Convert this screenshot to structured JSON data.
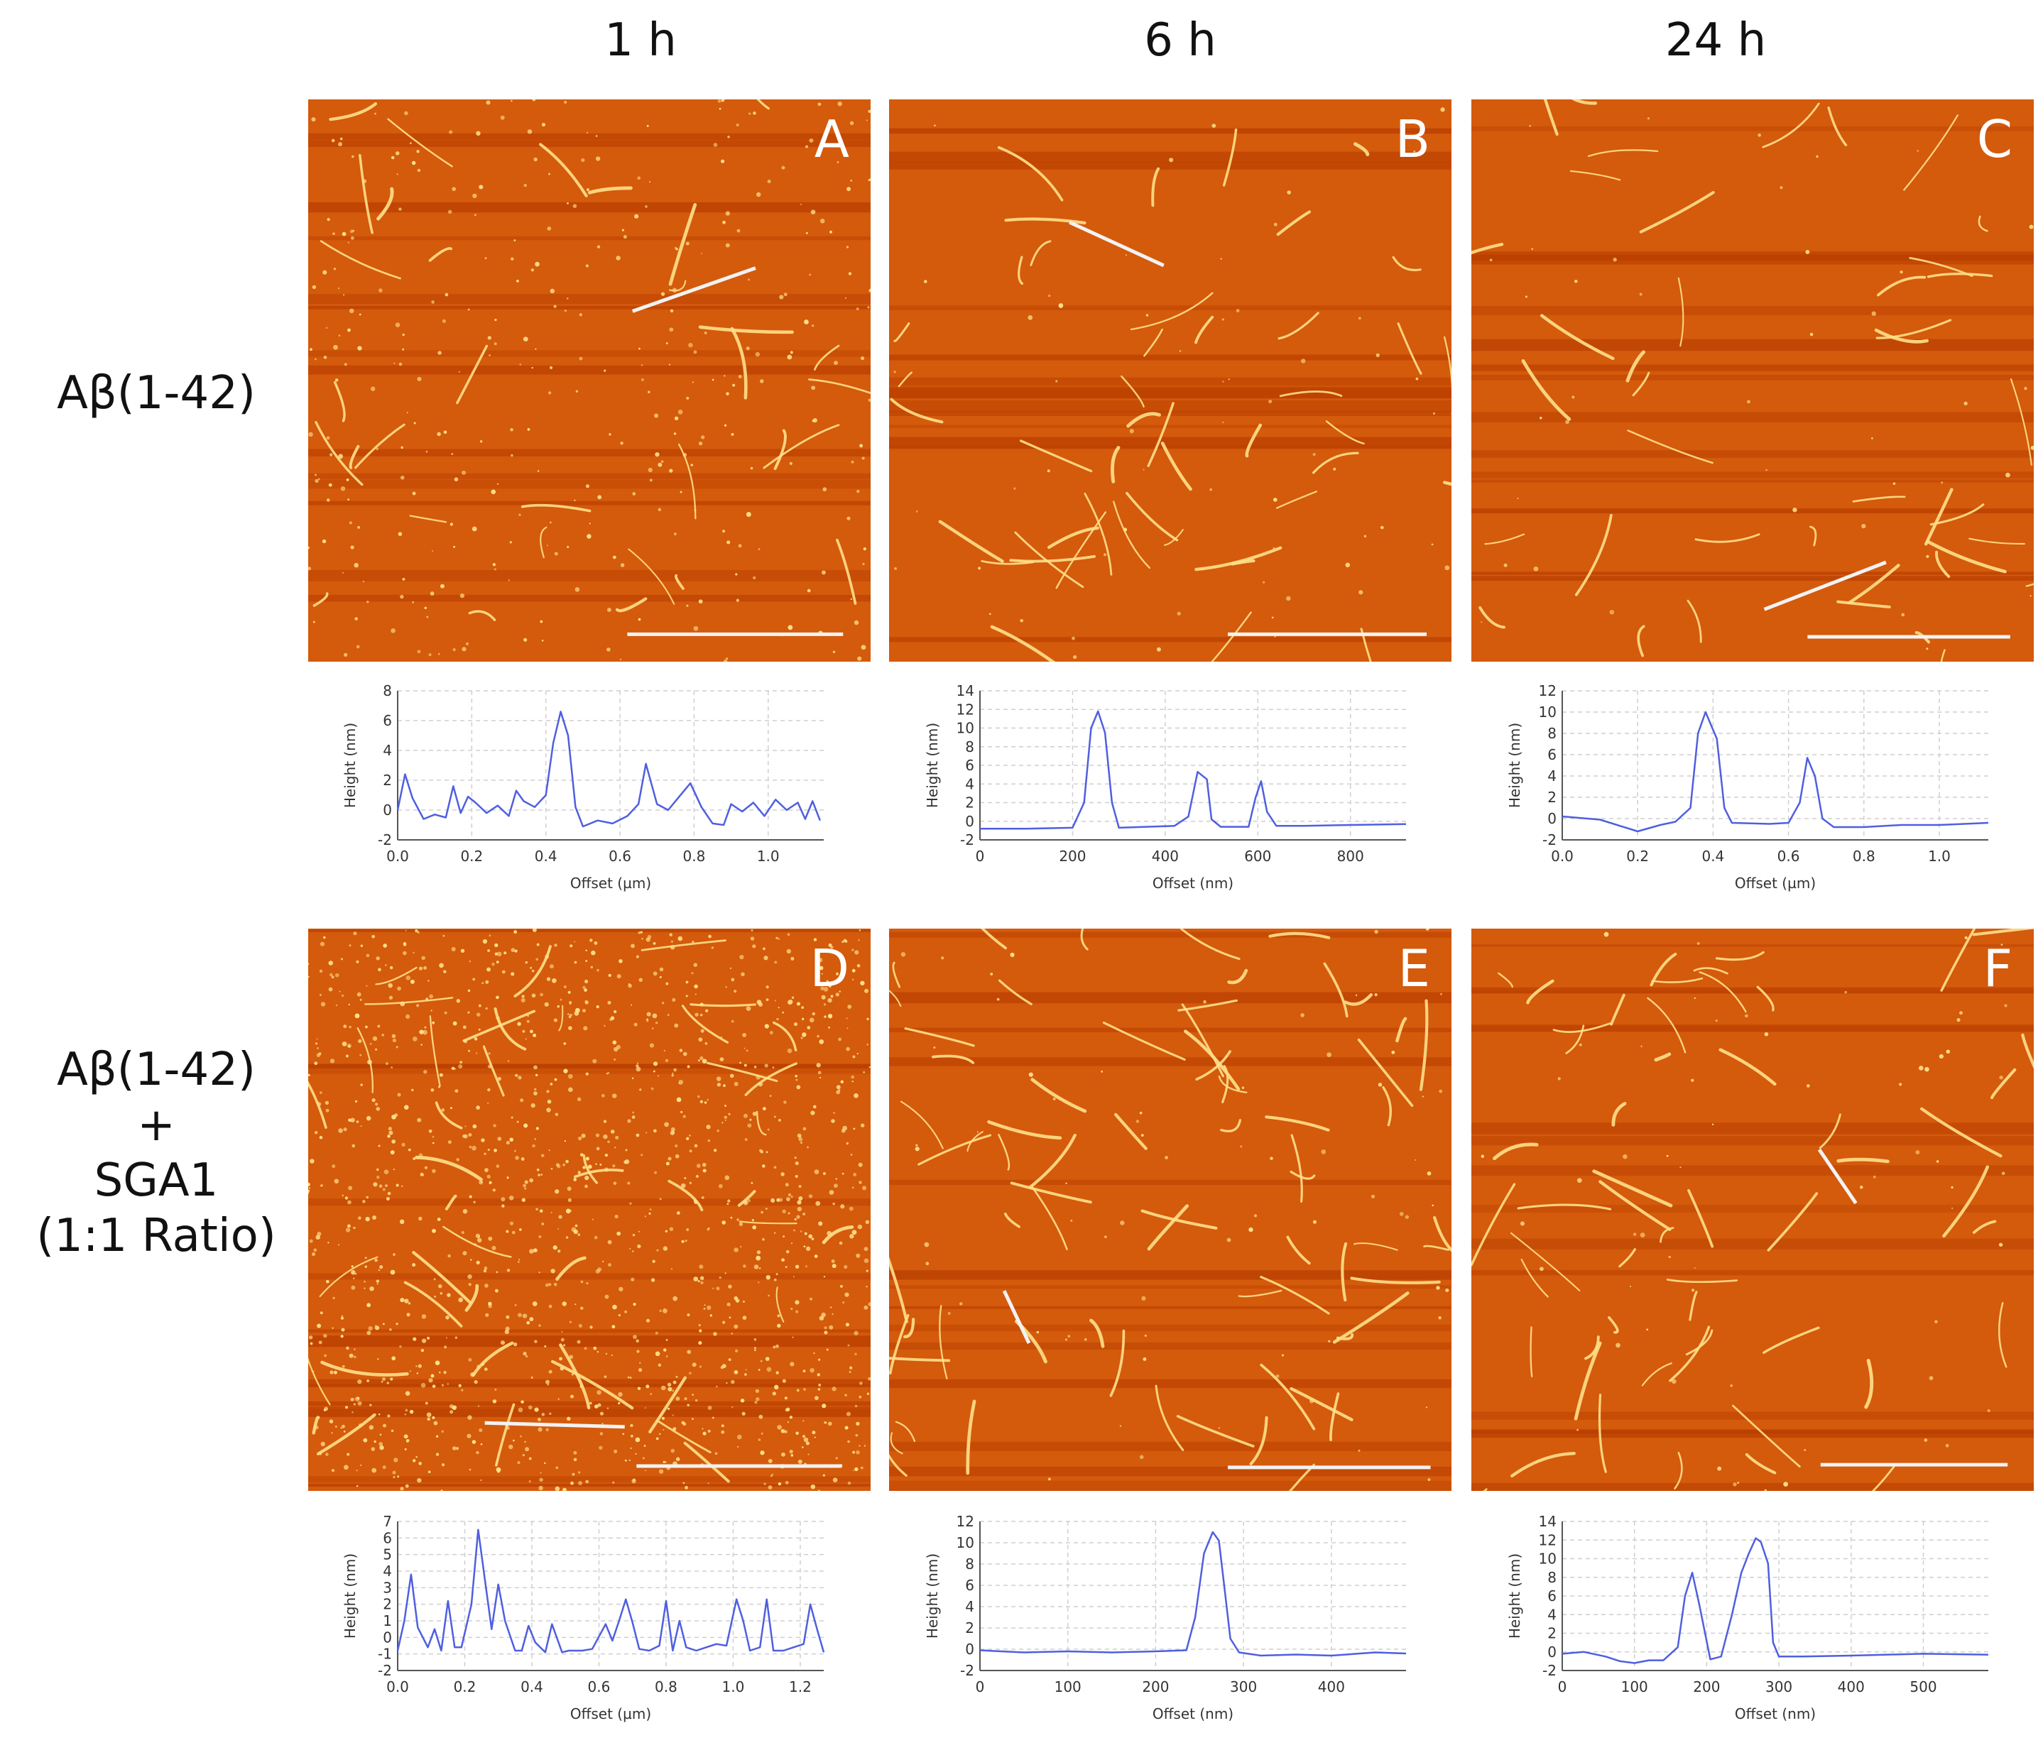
{
  "columns": [
    "1 h",
    "6 h",
    "24 h"
  ],
  "rows": [
    "Aβ(1-42)",
    "Aβ(1-42)\n+\nSGA1\n(1:1 Ratio)"
  ],
  "colors": {
    "afm_background": "#b83e00",
    "afm_mid": "#d45a0c",
    "afm_fibril": "#ffe08a",
    "profile_line": "#4f5fe0",
    "grid": "#cfcfcf"
  },
  "panels": [
    {
      "letter": "A"
    },
    {
      "letter": "B"
    },
    {
      "letter": "C"
    },
    {
      "letter": "D"
    },
    {
      "letter": "E"
    },
    {
      "letter": "F"
    }
  ],
  "chart_data": [
    {
      "panel": "A",
      "type": "line",
      "xlabel": "Offset (µm)",
      "ylabel": "Height (nm)",
      "xlim": [
        0,
        1.15
      ],
      "ylim": [
        -2,
        8
      ],
      "xticks": [
        0.0,
        0.2,
        0.4,
        0.6,
        0.8,
        1.0
      ],
      "xtick_labels": [
        "0.0",
        "0.2",
        "0.4",
        "0.6",
        "0.8",
        "1.0"
      ],
      "yticks": [
        -2,
        0,
        2,
        4,
        6,
        8
      ],
      "series": [
        {
          "x": [
            0.0,
            0.02,
            0.04,
            0.07,
            0.1,
            0.13,
            0.15,
            0.17,
            0.19,
            0.21,
            0.24,
            0.27,
            0.3,
            0.32,
            0.34,
            0.37,
            0.4,
            0.42,
            0.44,
            0.46,
            0.48,
            0.5,
            0.54,
            0.58,
            0.62,
            0.65,
            0.67,
            0.7,
            0.73,
            0.76,
            0.79,
            0.82,
            0.85,
            0.88,
            0.9,
            0.93,
            0.96,
            0.99,
            1.02,
            1.05,
            1.08,
            1.1,
            1.12,
            1.14
          ],
          "y": [
            0.0,
            2.4,
            0.8,
            -0.6,
            -0.3,
            -0.5,
            1.6,
            -0.2,
            0.9,
            0.5,
            -0.2,
            0.3,
            -0.4,
            1.3,
            0.6,
            0.2,
            1.0,
            4.5,
            6.6,
            5.0,
            0.2,
            -1.1,
            -0.7,
            -0.9,
            -0.4,
            0.4,
            3.1,
            0.4,
            0.0,
            0.9,
            1.8,
            0.2,
            -0.9,
            -1.0,
            0.4,
            -0.1,
            0.5,
            -0.4,
            0.7,
            0.0,
            0.5,
            -0.6,
            0.6,
            -0.7
          ]
        }
      ]
    },
    {
      "panel": "B",
      "type": "line",
      "xlabel": "Offset (nm)",
      "ylabel": "Height (nm)",
      "xlim": [
        0,
        920
      ],
      "ylim": [
        -2,
        14
      ],
      "xticks": [
        0,
        200,
        400,
        600,
        800
      ],
      "xtick_labels": [
        "0",
        "200",
        "400",
        "600",
        "800"
      ],
      "yticks": [
        -2,
        0,
        2,
        4,
        6,
        8,
        10,
        12,
        14
      ],
      "series": [
        {
          "x": [
            0,
            100,
            200,
            225,
            240,
            255,
            270,
            285,
            300,
            420,
            450,
            470,
            490,
            500,
            520,
            580,
            595,
            607,
            620,
            640,
            700,
            800,
            920
          ],
          "y": [
            -0.8,
            -0.8,
            -0.7,
            2.0,
            10.0,
            11.8,
            9.5,
            2.0,
            -0.7,
            -0.5,
            0.5,
            5.3,
            4.5,
            0.2,
            -0.6,
            -0.6,
            2.5,
            4.3,
            1.0,
            -0.5,
            -0.5,
            -0.4,
            -0.3
          ]
        }
      ]
    },
    {
      "panel": "C",
      "type": "line",
      "xlabel": "Offset (µm)",
      "ylabel": "Height (nm)",
      "xlim": [
        0,
        1.13
      ],
      "ylim": [
        -2,
        12
      ],
      "xticks": [
        0.0,
        0.2,
        0.4,
        0.6,
        0.8,
        1.0
      ],
      "xtick_labels": [
        "0.0",
        "0.2",
        "0.4",
        "0.6",
        "0.8",
        "1.0"
      ],
      "yticks": [
        -2,
        0,
        2,
        4,
        6,
        8,
        10,
        12
      ],
      "series": [
        {
          "x": [
            0.0,
            0.1,
            0.2,
            0.26,
            0.3,
            0.34,
            0.36,
            0.38,
            0.41,
            0.43,
            0.45,
            0.55,
            0.6,
            0.63,
            0.65,
            0.67,
            0.69,
            0.72,
            0.8,
            0.9,
            1.0,
            1.13
          ],
          "y": [
            0.2,
            -0.1,
            -1.2,
            -0.6,
            -0.3,
            1.0,
            8.0,
            10.0,
            7.5,
            1.0,
            -0.4,
            -0.5,
            -0.4,
            1.5,
            5.7,
            4.0,
            0.0,
            -0.8,
            -0.8,
            -0.6,
            -0.6,
            -0.4
          ]
        }
      ]
    },
    {
      "panel": "D",
      "type": "line",
      "xlabel": "Offset (µm)",
      "ylabel": "Height (nm)",
      "xlim": [
        0,
        1.27
      ],
      "ylim": [
        -2,
        7
      ],
      "xticks": [
        0.0,
        0.2,
        0.4,
        0.6,
        0.8,
        1.0,
        1.2
      ],
      "xtick_labels": [
        "0.0",
        "0.2",
        "0.4",
        "0.6",
        "0.8",
        "1.0",
        "1.2"
      ],
      "yticks": [
        -2,
        -1,
        0,
        1,
        2,
        3,
        4,
        5,
        6,
        7
      ],
      "series": [
        {
          "x": [
            0.0,
            0.02,
            0.04,
            0.06,
            0.09,
            0.11,
            0.13,
            0.15,
            0.17,
            0.19,
            0.22,
            0.24,
            0.26,
            0.28,
            0.3,
            0.32,
            0.35,
            0.37,
            0.39,
            0.41,
            0.44,
            0.46,
            0.49,
            0.51,
            0.55,
            0.58,
            0.62,
            0.64,
            0.66,
            0.68,
            0.7,
            0.72,
            0.75,
            0.78,
            0.8,
            0.82,
            0.84,
            0.86,
            0.89,
            0.92,
            0.95,
            0.98,
            1.01,
            1.03,
            1.05,
            1.08,
            1.1,
            1.12,
            1.15,
            1.18,
            1.21,
            1.23,
            1.25,
            1.27
          ],
          "y": [
            -0.8,
            1.0,
            3.8,
            0.6,
            -0.6,
            0.5,
            -0.8,
            2.2,
            -0.6,
            -0.6,
            2.0,
            6.5,
            3.5,
            0.5,
            3.2,
            1.0,
            -0.8,
            -0.8,
            0.7,
            -0.3,
            -0.9,
            0.8,
            -0.9,
            -0.8,
            -0.8,
            -0.7,
            0.8,
            -0.2,
            1.0,
            2.3,
            0.9,
            -0.7,
            -0.8,
            -0.5,
            2.2,
            -0.8,
            1.0,
            -0.6,
            -0.8,
            -0.6,
            -0.4,
            -0.5,
            2.3,
            1.0,
            -0.8,
            -0.6,
            2.3,
            -0.8,
            -0.8,
            -0.6,
            -0.4,
            2.0,
            0.5,
            -0.9
          ]
        }
      ]
    },
    {
      "panel": "E",
      "type": "line",
      "xlabel": "Offset (nm)",
      "ylabel": "Height (nm)",
      "xlim": [
        0,
        485
      ],
      "ylim": [
        -2,
        12
      ],
      "xticks": [
        0,
        100,
        200,
        300,
        400
      ],
      "xtick_labels": [
        "0",
        "100",
        "200",
        "300",
        "400"
      ],
      "yticks": [
        -2,
        0,
        2,
        4,
        6,
        8,
        10,
        12
      ],
      "series": [
        {
          "x": [
            0,
            50,
            100,
            150,
            200,
            235,
            245,
            255,
            265,
            272,
            278,
            285,
            295,
            320,
            360,
            400,
            450,
            485
          ],
          "y": [
            -0.1,
            -0.3,
            -0.2,
            -0.3,
            -0.2,
            -0.1,
            3.0,
            9.0,
            11.0,
            10.2,
            6.0,
            1.0,
            -0.3,
            -0.6,
            -0.5,
            -0.6,
            -0.3,
            -0.4
          ]
        }
      ]
    },
    {
      "panel": "F",
      "type": "line",
      "xlabel": "Offset (nm)",
      "ylabel": "Height (nm)",
      "xlim": [
        0,
        590
      ],
      "ylim": [
        -2,
        14
      ],
      "xticks": [
        0,
        100,
        200,
        300,
        400,
        500
      ],
      "xtick_labels": [
        "0",
        "100",
        "200",
        "300",
        "400",
        "500"
      ],
      "yticks": [
        -2,
        0,
        2,
        4,
        6,
        8,
        10,
        12,
        14
      ],
      "series": [
        {
          "x": [
            0,
            30,
            60,
            80,
            100,
            120,
            140,
            160,
            170,
            180,
            190,
            205,
            220,
            235,
            248,
            258,
            268,
            275,
            285,
            292,
            300,
            330,
            400,
            500,
            590
          ],
          "y": [
            -0.2,
            0.0,
            -0.5,
            -1.0,
            -1.2,
            -0.9,
            -0.9,
            0.5,
            6.0,
            8.5,
            5.0,
            -0.8,
            -0.5,
            4.0,
            8.5,
            10.5,
            12.2,
            11.8,
            9.5,
            1.0,
            -0.5,
            -0.5,
            -0.4,
            -0.2,
            -0.3
          ]
        }
      ]
    }
  ]
}
